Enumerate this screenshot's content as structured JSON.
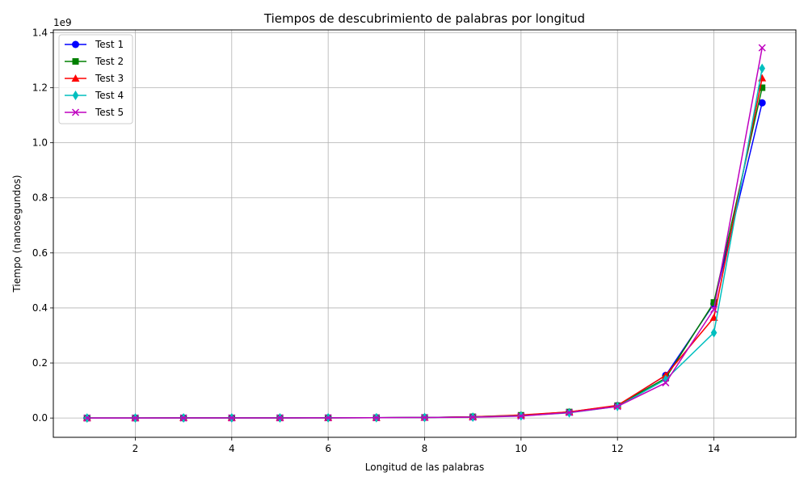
{
  "chart_data": {
    "type": "line",
    "title": "Tiempos de descubrimiento de palabras por longitud",
    "xlabel": "Longitud de las palabras",
    "ylabel": "Tiempo (nanosegundos)",
    "y_multiplier_label": "1e9",
    "xlim": [
      0.3,
      15.7
    ],
    "ylim": [
      -0.07,
      1.41
    ],
    "x_ticks": [
      2,
      4,
      6,
      8,
      10,
      12,
      14
    ],
    "y_ticks": [
      0.0,
      0.2,
      0.4,
      0.6,
      0.8,
      1.0,
      1.2,
      1.4
    ],
    "x_tick_labels": [
      "2",
      "4",
      "6",
      "8",
      "10",
      "12",
      "14"
    ],
    "y_tick_labels": [
      "0.0",
      "0.2",
      "0.4",
      "0.6",
      "0.8",
      "1.0",
      "1.2",
      "1.4"
    ],
    "grid": true,
    "legend_position": "top-left",
    "x": [
      1,
      2,
      3,
      4,
      5,
      6,
      7,
      8,
      9,
      10,
      11,
      12,
      13,
      14,
      15
    ],
    "series": [
      {
        "name": "Test 1",
        "color": "#0000ff",
        "marker": "circle",
        "values": [
          0.0001,
          0.0002,
          0.0003,
          0.0004,
          0.0006,
          0.0009,
          0.0013,
          0.002,
          0.004,
          0.009,
          0.021,
          0.045,
          0.155,
          0.415,
          1.145
        ]
      },
      {
        "name": "Test 2",
        "color": "#008000",
        "marker": "square",
        "values": [
          0.0001,
          0.0002,
          0.0003,
          0.0004,
          0.0006,
          0.0009,
          0.0013,
          0.002,
          0.0045,
          0.01,
          0.022,
          0.045,
          0.145,
          0.42,
          1.2
        ]
      },
      {
        "name": "Test 3",
        "color": "#ff0000",
        "marker": "triangle",
        "values": [
          0.0001,
          0.0002,
          0.0003,
          0.0004,
          0.0006,
          0.0009,
          0.0013,
          0.002,
          0.0045,
          0.011,
          0.022,
          0.046,
          0.155,
          0.365,
          1.235
        ]
      },
      {
        "name": "Test 4",
        "color": "#00bfbf",
        "marker": "diamond",
        "values": [
          0.0001,
          0.0002,
          0.0003,
          0.0004,
          0.0006,
          0.0009,
          0.0013,
          0.002,
          0.0035,
          0.008,
          0.019,
          0.042,
          0.14,
          0.31,
          1.27
        ]
      },
      {
        "name": "Test 5",
        "color": "#bf00bf",
        "marker": "x",
        "values": [
          0.0001,
          0.0002,
          0.0003,
          0.0004,
          0.0006,
          0.0009,
          0.0013,
          0.002,
          0.003,
          0.007,
          0.02,
          0.042,
          0.128,
          0.395,
          1.345
        ]
      }
    ]
  }
}
